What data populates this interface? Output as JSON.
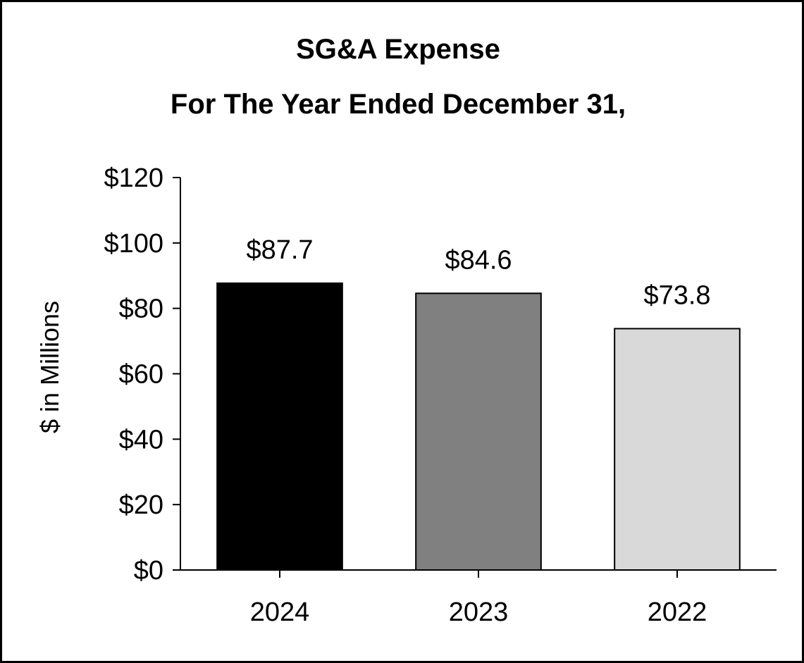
{
  "chart_data": {
    "type": "bar",
    "title": "SG&A Expense",
    "subtitle": "For The Year Ended December 31,",
    "xlabel": "",
    "ylabel": "$ in Millions",
    "categories": [
      "2024",
      "2023",
      "2022"
    ],
    "values": [
      87.7,
      84.6,
      73.8
    ],
    "data_labels": [
      "$87.7",
      "$84.6",
      "$73.8"
    ],
    "bar_colors": [
      "#000000",
      "#808080",
      "#d9d9d9"
    ],
    "ylim": [
      0,
      120
    ],
    "ytick_values": [
      0,
      20,
      40,
      60,
      80,
      100,
      120
    ],
    "ytick_labels": [
      "$0",
      "$20",
      "$40",
      "$60",
      "$80",
      "$100",
      "$120"
    ],
    "grid": false,
    "legend": "none"
  }
}
